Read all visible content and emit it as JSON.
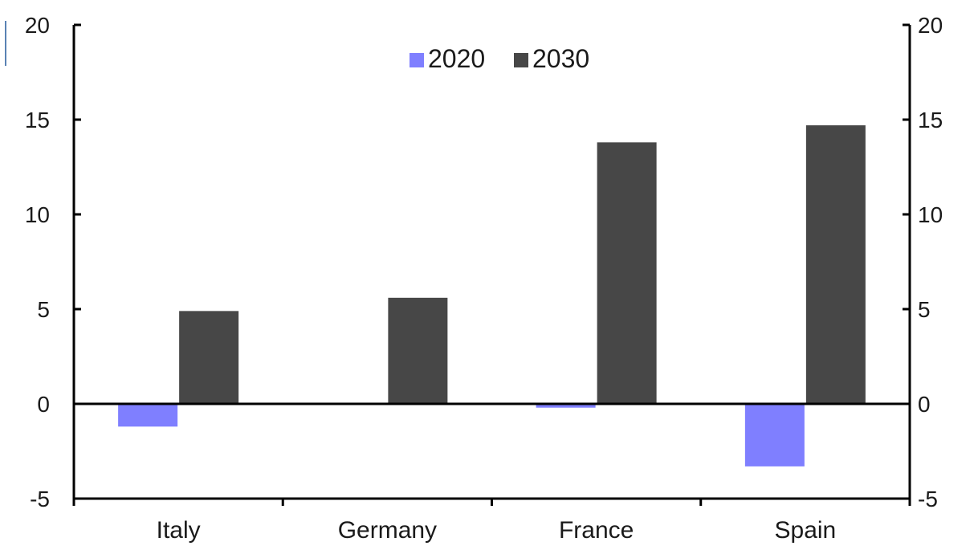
{
  "chart_data": {
    "type": "bar",
    "categories": [
      "Italy",
      "Germany",
      "France",
      "Spain"
    ],
    "series": [
      {
        "name": "2020",
        "color": "#7f7fff",
        "values": [
          -1.2,
          0.0,
          -0.2,
          -3.3
        ]
      },
      {
        "name": "2030",
        "color": "#474747",
        "values": [
          4.9,
          5.6,
          13.8,
          14.7
        ]
      }
    ],
    "ylim": [
      -5,
      20
    ],
    "yticks": [
      20,
      15,
      10,
      5,
      0,
      -5
    ],
    "ytick_labels": [
      "20",
      "15",
      "10",
      "5",
      "0",
      "-5"
    ],
    "legend": {
      "position": "top-center",
      "labels": [
        "2020",
        "2030"
      ]
    },
    "grid": false,
    "dual_y_axis": true
  }
}
